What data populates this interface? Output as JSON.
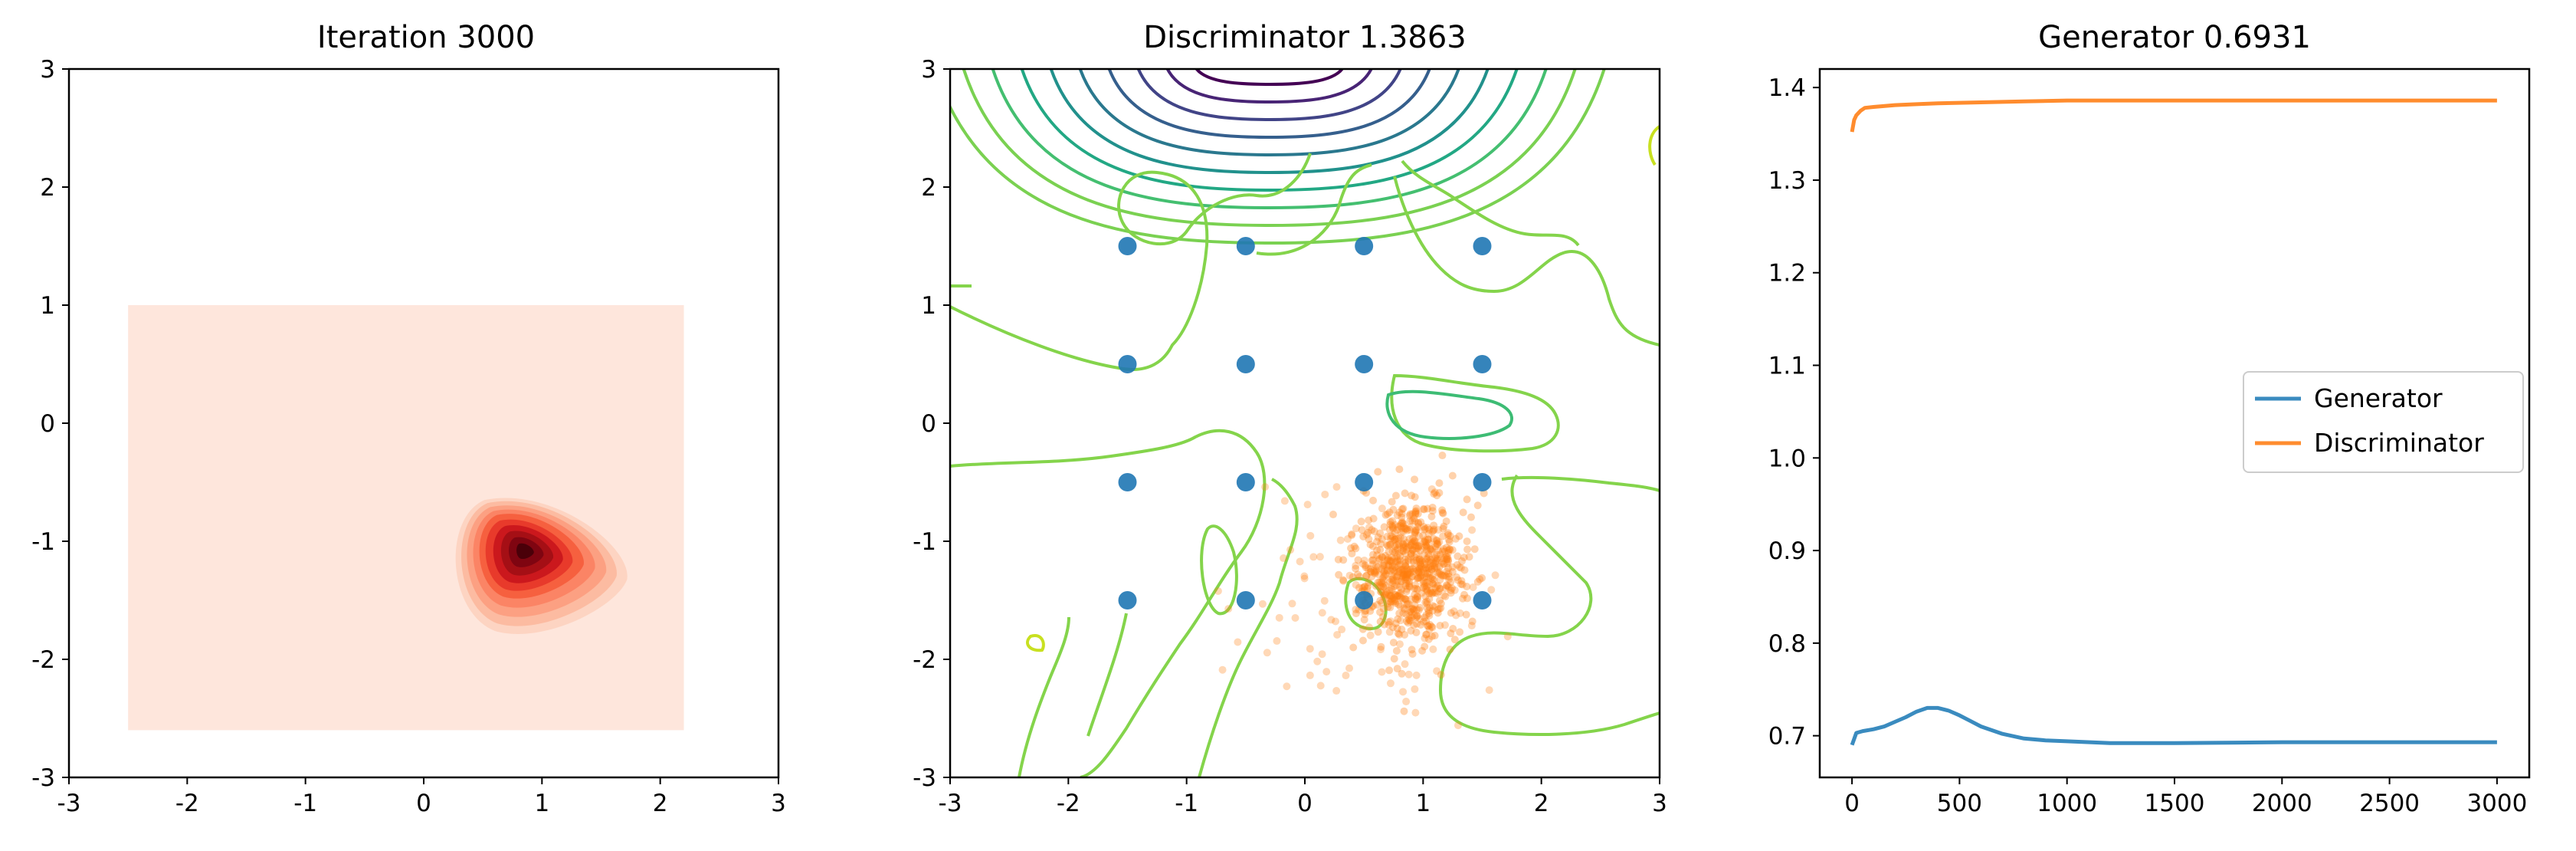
{
  "chart_data": [
    {
      "type": "heatmap",
      "title": "Iteration 3000",
      "xlim": [
        -3,
        3
      ],
      "ylim": [
        -3,
        3
      ],
      "xticks": [
        -3,
        -2,
        -1,
        0,
        1,
        2,
        3
      ],
      "yticks": [
        -3,
        -2,
        -1,
        0,
        1,
        2,
        3
      ],
      "background_region": {
        "x": [
          -2.5,
          2.2
        ],
        "y": [
          -2.6,
          1.0
        ],
        "color": "#fee6dc"
      },
      "density_peak": {
        "x": 0.85,
        "y": -1.1
      },
      "colormap": "Reds"
    },
    {
      "type": "scatter",
      "title": "Discriminator 1.3863",
      "xlim": [
        -3,
        3
      ],
      "ylim": [
        -3,
        3
      ],
      "xticks": [
        -3,
        -2,
        -1,
        0,
        1,
        2,
        3
      ],
      "yticks": [
        -3,
        -2,
        -1,
        0,
        1,
        2,
        3
      ],
      "real_points": [
        [
          -1.5,
          1.5
        ],
        [
          -0.5,
          1.5
        ],
        [
          0.5,
          1.5
        ],
        [
          1.5,
          1.5
        ],
        [
          -1.5,
          0.5
        ],
        [
          -0.5,
          0.5
        ],
        [
          0.5,
          0.5
        ],
        [
          1.5,
          0.5
        ],
        [
          -1.5,
          -0.5
        ],
        [
          -0.5,
          -0.5
        ],
        [
          0.5,
          -0.5
        ],
        [
          1.5,
          -0.5
        ],
        [
          -1.5,
          -1.5
        ],
        [
          -0.5,
          -1.5
        ],
        [
          0.5,
          -1.5
        ],
        [
          1.5,
          -1.5
        ]
      ],
      "real_color": "#1f77b4",
      "fake_cluster": {
        "center": [
          0.9,
          -1.2
        ],
        "color": "#ff7f0e"
      },
      "contour_colormap": "viridis"
    },
    {
      "type": "line",
      "title": "Generator 0.6931",
      "xlim": [
        -150,
        3150
      ],
      "ylim": [
        0.655,
        1.42
      ],
      "xticks": [
        0,
        500,
        1000,
        1500,
        2000,
        2500,
        3000
      ],
      "yticks": [
        0.7,
        0.8,
        0.9,
        1.0,
        1.1,
        1.2,
        1.3,
        1.4
      ],
      "ytick_labels": [
        "0.7",
        "0.8",
        "0.9",
        "1.0",
        "1.1",
        "1.2",
        "1.3",
        "1.4"
      ],
      "series": [
        {
          "name": "Generator",
          "color": "#3a8bbf",
          "x": [
            0,
            20,
            50,
            100,
            150,
            200,
            250,
            300,
            350,
            400,
            450,
            500,
            550,
            600,
            700,
            800,
            900,
            1000,
            1200,
            1500,
            2000,
            2500,
            3000
          ],
          "y": [
            0.69,
            0.703,
            0.705,
            0.707,
            0.71,
            0.715,
            0.72,
            0.726,
            0.73,
            0.73,
            0.727,
            0.722,
            0.716,
            0.71,
            0.702,
            0.697,
            0.695,
            0.694,
            0.692,
            0.692,
            0.693,
            0.693,
            0.693
          ]
        },
        {
          "name": "Discriminator",
          "color": "#ff8c2e",
          "x": [
            0,
            10,
            20,
            40,
            60,
            100,
            200,
            300,
            400,
            600,
            800,
            1000,
            1500,
            2000,
            2500,
            3000
          ],
          "y": [
            1.352,
            1.365,
            1.37,
            1.375,
            1.378,
            1.379,
            1.381,
            1.382,
            1.383,
            1.384,
            1.385,
            1.386,
            1.386,
            1.386,
            1.386,
            1.386
          ]
        }
      ],
      "legend": [
        "Generator",
        "Discriminator"
      ],
      "legend_position": "center-right"
    }
  ]
}
